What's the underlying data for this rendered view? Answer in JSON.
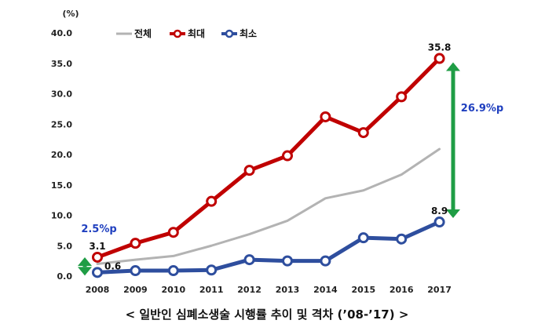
{
  "chart_data": {
    "type": "line",
    "categories": [
      "2008",
      "2009",
      "2010",
      "2011",
      "2012",
      "2013",
      "2014",
      "2015",
      "2016",
      "2017"
    ],
    "series": [
      {
        "name": "전체",
        "color": "#b3b3b3",
        "marker": false,
        "values": [
          2.0,
          2.7,
          3.3,
          5.0,
          6.9,
          9.1,
          12.8,
          14.1,
          16.7,
          20.9
        ]
      },
      {
        "name": "최대",
        "color": "#c00000",
        "marker": true,
        "values": [
          3.1,
          5.4,
          7.2,
          12.3,
          17.4,
          19.8,
          26.2,
          23.6,
          29.5,
          35.8
        ]
      },
      {
        "name": "최소",
        "color": "#2e4e9e",
        "marker": true,
        "values": [
          0.6,
          0.9,
          0.9,
          1.0,
          2.7,
          2.5,
          2.5,
          6.3,
          6.1,
          8.9
        ]
      }
    ],
    "ylim": [
      0,
      40
    ],
    "yticks": [
      "0.0",
      "5.0",
      "10.0",
      "15.0",
      "20.0",
      "25.0",
      "30.0",
      "35.0",
      "40.0"
    ],
    "y_unit": "(%)",
    "legend_position": "top",
    "grid": false,
    "data_labels": [
      {
        "series": "최대",
        "index": 0,
        "text": "3.1"
      },
      {
        "series": "최소",
        "index": 0,
        "text": "0.6"
      },
      {
        "series": "최대",
        "index": 9,
        "text": "35.8"
      },
      {
        "series": "최소",
        "index": 9,
        "text": "8.9"
      }
    ],
    "gap_annotations": [
      {
        "text": "2.5%p",
        "index": 0,
        "from": 0.6,
        "to": 3.1,
        "color": "#1f9d45",
        "text_color": "#1f3fbf"
      },
      {
        "text": "26.9%p",
        "index": 9,
        "from": 8.9,
        "to": 35.8,
        "color": "#1f9d45",
        "text_color": "#1f3fbf"
      }
    ]
  },
  "caption": "< 일반인 심폐소생술 시행률 추이 및 격차 (’08-’17) >"
}
